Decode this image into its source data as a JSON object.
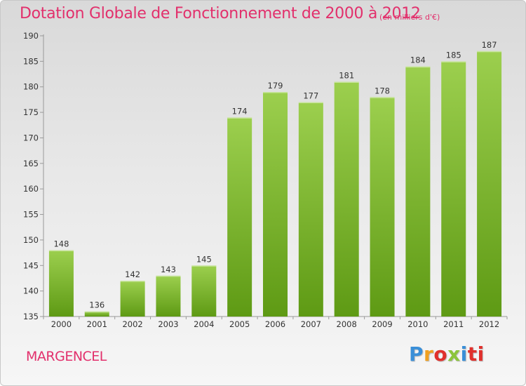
{
  "header": {
    "title": "Dotation Globale de Fonctionnement de 2000 à 2012",
    "unit": "(en milliers d'€)"
  },
  "footer": {
    "commune": "MARGENCEL",
    "logo_text": "Proxiti",
    "logo_letters": [
      "P",
      "r",
      "o",
      "x",
      "i",
      "ti"
    ]
  },
  "colors": {
    "accent": "#e2306c",
    "bar_top": "#9ccf4e",
    "bar_bottom": "#5e9a14"
  },
  "chart_data": {
    "type": "bar",
    "title": "Dotation Globale de Fonctionnement de 2000 à 2012",
    "xlabel": "",
    "ylabel": "",
    "categories": [
      "2000",
      "2001",
      "2002",
      "2003",
      "2004",
      "2005",
      "2006",
      "2007",
      "2008",
      "2009",
      "2010",
      "2011",
      "2012"
    ],
    "values": [
      148,
      136,
      142,
      143,
      145,
      174,
      179,
      177,
      181,
      178,
      184,
      185,
      187
    ],
    "ylim": [
      135,
      190
    ],
    "yticks": [
      135,
      140,
      145,
      150,
      155,
      160,
      165,
      170,
      175,
      180,
      185,
      190
    ],
    "grid": false,
    "legend": "none"
  }
}
